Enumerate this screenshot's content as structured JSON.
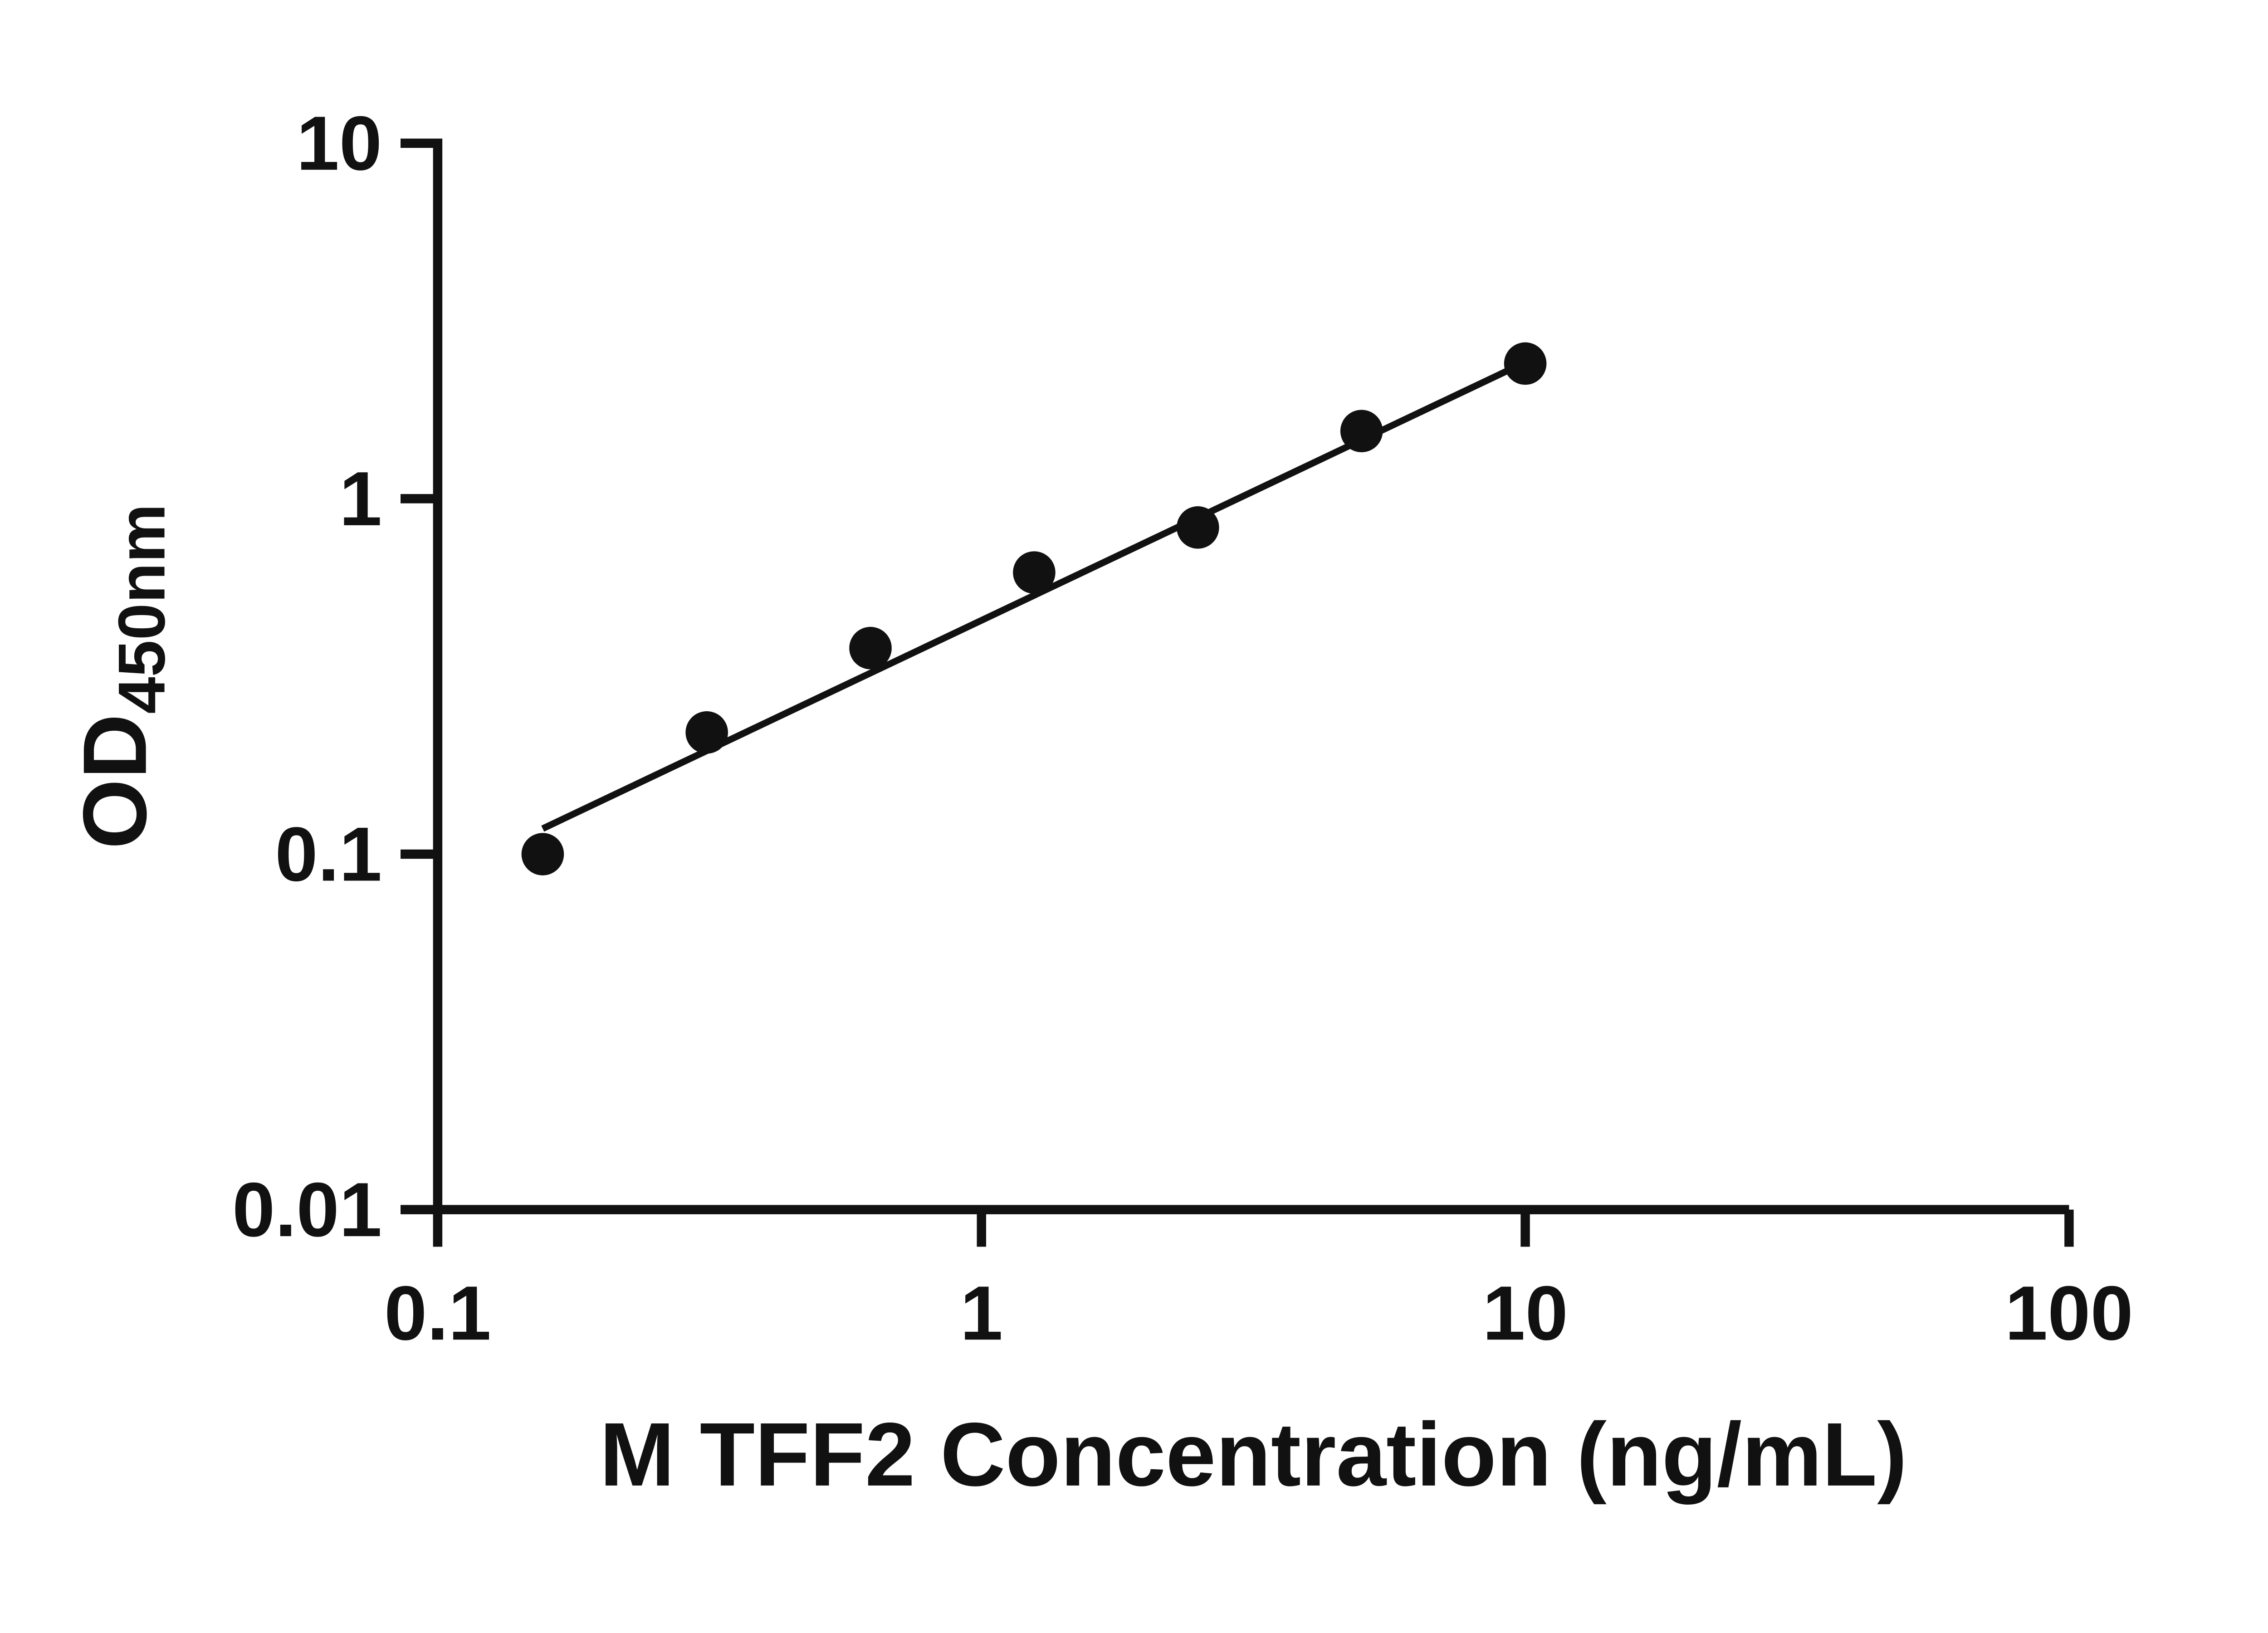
{
  "chart_data": {
    "type": "scatter",
    "title": "",
    "xlabel": "M TFF2 Concentration (ng/mL)",
    "ylabel_main": "OD",
    "ylabel_sub": "450nm",
    "x_scale": "log",
    "y_scale": "log",
    "xlim": [
      0.1,
      100
    ],
    "ylim": [
      0.01,
      10
    ],
    "x_ticks": [
      0.1,
      1,
      10,
      100
    ],
    "x_tick_labels": [
      "0.1",
      "1",
      "10",
      "100"
    ],
    "y_ticks": [
      0.01,
      0.1,
      1,
      10
    ],
    "y_tick_labels": [
      "0.01",
      "0.1",
      "1",
      "10"
    ],
    "points": [
      {
        "x": 0.156,
        "y": 0.1
      },
      {
        "x": 0.3125,
        "y": 0.22
      },
      {
        "x": 0.625,
        "y": 0.38
      },
      {
        "x": 1.25,
        "y": 0.62
      },
      {
        "x": 2.5,
        "y": 0.83
      },
      {
        "x": 5,
        "y": 1.55
      },
      {
        "x": 10,
        "y": 2.4
      }
    ],
    "trendline": {
      "x1": 0.156,
      "y1": 0.118,
      "x2": 10,
      "y2": 2.42
    },
    "grid": false,
    "legend": "none",
    "marker_color": "#111111",
    "line_color": "#111111",
    "axis_color": "#111111",
    "background": "#ffffff"
  }
}
